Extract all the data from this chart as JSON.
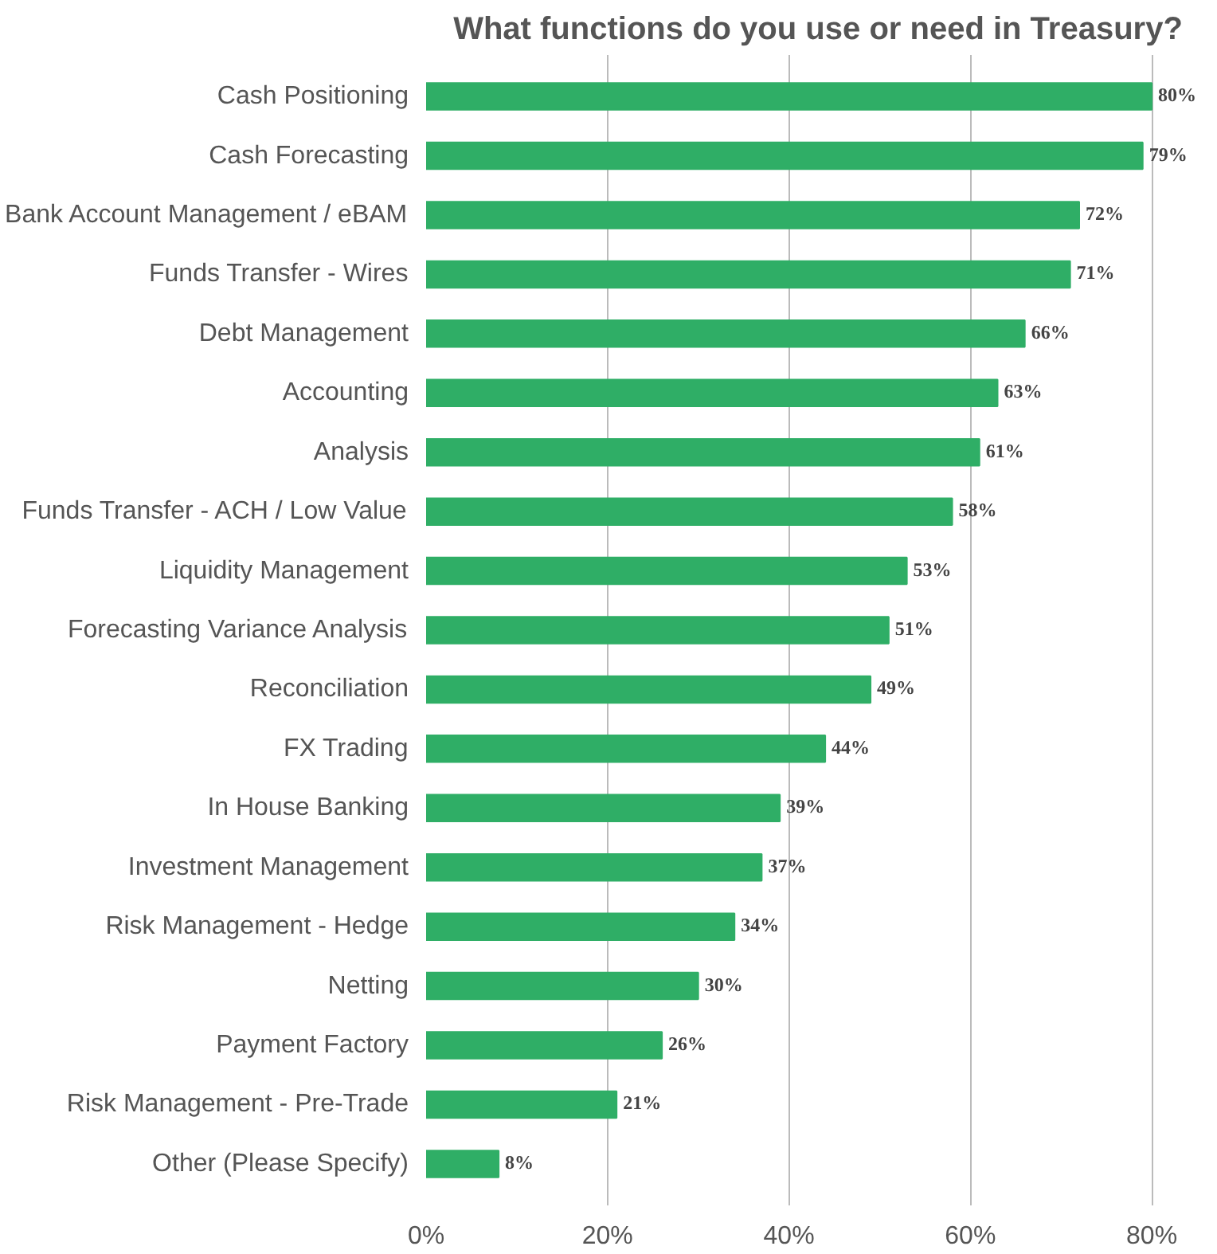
{
  "chart_data": {
    "type": "bar",
    "orientation": "horizontal",
    "title": "What functions do you use or need in Treasury?",
    "categories": [
      "Cash Positioning",
      "Cash Forecasting",
      "Bank Account Management / eBAM",
      "Funds Transfer - Wires",
      "Debt Management",
      "Accounting",
      "Analysis",
      "Funds Transfer - ACH / Low Value",
      "Liquidity Management",
      "Forecasting Variance Analysis",
      "Reconciliation",
      "FX Trading",
      "In House Banking",
      "Investment Management",
      "Risk Management - Hedge",
      "Netting",
      "Payment Factory",
      "Risk Management - Pre-Trade",
      "Other (Please Specify)"
    ],
    "values": [
      80,
      79,
      72,
      71,
      66,
      63,
      61,
      58,
      53,
      51,
      49,
      44,
      39,
      37,
      34,
      30,
      26,
      21,
      8
    ],
    "value_labels": [
      "80%",
      "79%",
      "72%",
      "71%",
      "66%",
      "63%",
      "61%",
      "58%",
      "53%",
      "51%",
      "49%",
      "44%",
      "39%",
      "37%",
      "34%",
      "30%",
      "26%",
      "21%",
      "8%"
    ],
    "color": "#2fae66",
    "xlim": [
      0,
      80
    ],
    "xticks": [
      {
        "value": 0,
        "label": "0%"
      },
      {
        "value": 20,
        "label": "20%"
      },
      {
        "value": 40,
        "label": "40%"
      },
      {
        "value": 60,
        "label": "60%"
      },
      {
        "value": 80,
        "label": "80%"
      }
    ],
    "grid": "x"
  }
}
